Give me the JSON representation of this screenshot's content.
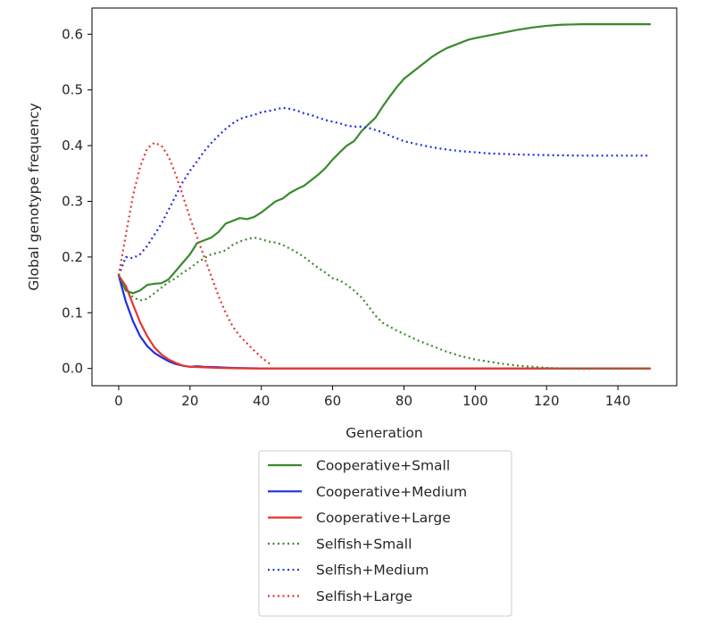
{
  "chart_data": {
    "type": "line",
    "title": "",
    "xlabel": "Generation",
    "ylabel": "Global genotype frequency",
    "xlim": [
      -7.5,
      156.5
    ],
    "ylim": [
      -0.031,
      0.647
    ],
    "xticks": [
      0,
      20,
      40,
      60,
      80,
      100,
      120,
      140
    ],
    "yticks": [
      0.0,
      0.1,
      0.2,
      0.3,
      0.4,
      0.5,
      0.6
    ],
    "ytick_labels": [
      "0.0",
      "0.1",
      "0.2",
      "0.3",
      "0.4",
      "0.5",
      "0.6"
    ],
    "grid": false,
    "legend_position": "below",
    "series": [
      {
        "name": "Cooperative+Small",
        "color": "#3a8a2e",
        "style": "solid",
        "points": [
          [
            0,
            0.167
          ],
          [
            2,
            0.14
          ],
          [
            4,
            0.135
          ],
          [
            6,
            0.14
          ],
          [
            8,
            0.15
          ],
          [
            10,
            0.152
          ],
          [
            12,
            0.153
          ],
          [
            14,
            0.16
          ],
          [
            16,
            0.175
          ],
          [
            18,
            0.19
          ],
          [
            20,
            0.205
          ],
          [
            22,
            0.225
          ],
          [
            24,
            0.23
          ],
          [
            26,
            0.235
          ],
          [
            28,
            0.245
          ],
          [
            30,
            0.26
          ],
          [
            32,
            0.265
          ],
          [
            34,
            0.27
          ],
          [
            36,
            0.268
          ],
          [
            38,
            0.272
          ],
          [
            40,
            0.28
          ],
          [
            42,
            0.29
          ],
          [
            44,
            0.3
          ],
          [
            46,
            0.305
          ],
          [
            48,
            0.315
          ],
          [
            50,
            0.322
          ],
          [
            52,
            0.328
          ],
          [
            54,
            0.338
          ],
          [
            56,
            0.348
          ],
          [
            58,
            0.36
          ],
          [
            60,
            0.375
          ],
          [
            62,
            0.388
          ],
          [
            64,
            0.4
          ],
          [
            66,
            0.408
          ],
          [
            68,
            0.425
          ],
          [
            70,
            0.438
          ],
          [
            72,
            0.45
          ],
          [
            74,
            0.47
          ],
          [
            76,
            0.488
          ],
          [
            78,
            0.505
          ],
          [
            80,
            0.52
          ],
          [
            82,
            0.53
          ],
          [
            84,
            0.54
          ],
          [
            86,
            0.55
          ],
          [
            88,
            0.56
          ],
          [
            90,
            0.568
          ],
          [
            92,
            0.575
          ],
          [
            94,
            0.58
          ],
          [
            96,
            0.585
          ],
          [
            98,
            0.59
          ],
          [
            100,
            0.593
          ],
          [
            104,
            0.598
          ],
          [
            108,
            0.603
          ],
          [
            112,
            0.608
          ],
          [
            116,
            0.612
          ],
          [
            120,
            0.615
          ],
          [
            124,
            0.617
          ],
          [
            130,
            0.618
          ],
          [
            140,
            0.618
          ],
          [
            149,
            0.618
          ]
        ]
      },
      {
        "name": "Cooperative+Medium",
        "color": "#1f2ee8",
        "style": "solid",
        "points": [
          [
            0,
            0.167
          ],
          [
            2,
            0.12
          ],
          [
            4,
            0.085
          ],
          [
            6,
            0.058
          ],
          [
            8,
            0.04
          ],
          [
            10,
            0.028
          ],
          [
            12,
            0.02
          ],
          [
            14,
            0.013
          ],
          [
            16,
            0.008
          ],
          [
            18,
            0.005
          ],
          [
            20,
            0.003
          ],
          [
            22,
            0.004
          ],
          [
            24,
            0.003
          ],
          [
            28,
            0.002
          ],
          [
            32,
            0.001
          ],
          [
            36,
            0.0005
          ],
          [
            40,
            0.0
          ],
          [
            60,
            0.0
          ],
          [
            80,
            0.0
          ],
          [
            100,
            0.0
          ],
          [
            120,
            0.0
          ],
          [
            149,
            0.0
          ]
        ]
      },
      {
        "name": "Cooperative+Large",
        "color": "#e8342c",
        "style": "solid",
        "points": [
          [
            0,
            0.167
          ],
          [
            2,
            0.148
          ],
          [
            4,
            0.115
          ],
          [
            6,
            0.083
          ],
          [
            8,
            0.058
          ],
          [
            10,
            0.038
          ],
          [
            12,
            0.025
          ],
          [
            14,
            0.016
          ],
          [
            16,
            0.01
          ],
          [
            18,
            0.005
          ],
          [
            20,
            0.003
          ],
          [
            24,
            0.002
          ],
          [
            28,
            0.001
          ],
          [
            32,
            0.0005
          ],
          [
            36,
            0.0
          ],
          [
            60,
            0.0
          ],
          [
            80,
            0.0
          ],
          [
            100,
            0.0
          ],
          [
            120,
            0.0
          ],
          [
            149,
            0.0
          ]
        ]
      },
      {
        "name": "Selfish+Small",
        "color": "#3a8a2e",
        "style": "dotted",
        "points": [
          [
            0,
            0.167
          ],
          [
            2,
            0.14
          ],
          [
            4,
            0.128
          ],
          [
            6,
            0.122
          ],
          [
            8,
            0.125
          ],
          [
            10,
            0.135
          ],
          [
            12,
            0.145
          ],
          [
            14,
            0.155
          ],
          [
            16,
            0.162
          ],
          [
            18,
            0.172
          ],
          [
            20,
            0.18
          ],
          [
            22,
            0.19
          ],
          [
            24,
            0.198
          ],
          [
            26,
            0.205
          ],
          [
            28,
            0.208
          ],
          [
            30,
            0.212
          ],
          [
            32,
            0.222
          ],
          [
            34,
            0.228
          ],
          [
            36,
            0.232
          ],
          [
            38,
            0.235
          ],
          [
            40,
            0.232
          ],
          [
            42,
            0.228
          ],
          [
            44,
            0.226
          ],
          [
            46,
            0.222
          ],
          [
            48,
            0.215
          ],
          [
            50,
            0.208
          ],
          [
            52,
            0.2
          ],
          [
            54,
            0.19
          ],
          [
            56,
            0.18
          ],
          [
            58,
            0.172
          ],
          [
            60,
            0.162
          ],
          [
            62,
            0.158
          ],
          [
            64,
            0.15
          ],
          [
            66,
            0.14
          ],
          [
            68,
            0.128
          ],
          [
            70,
            0.112
          ],
          [
            72,
            0.095
          ],
          [
            74,
            0.082
          ],
          [
            76,
            0.075
          ],
          [
            78,
            0.068
          ],
          [
            80,
            0.062
          ],
          [
            84,
            0.05
          ],
          [
            88,
            0.04
          ],
          [
            92,
            0.03
          ],
          [
            96,
            0.022
          ],
          [
            100,
            0.016
          ],
          [
            104,
            0.012
          ],
          [
            108,
            0.008
          ],
          [
            112,
            0.005
          ],
          [
            116,
            0.003
          ],
          [
            120,
            0.001
          ],
          [
            124,
            0.0
          ],
          [
            130,
            0.0
          ],
          [
            140,
            0.0
          ],
          [
            149,
            0.0
          ]
        ]
      },
      {
        "name": "Selfish+Medium",
        "color": "#1f2ee8",
        "style": "dotted",
        "points": [
          [
            0,
            0.167
          ],
          [
            2,
            0.2
          ],
          [
            4,
            0.198
          ],
          [
            6,
            0.205
          ],
          [
            8,
            0.22
          ],
          [
            10,
            0.24
          ],
          [
            12,
            0.26
          ],
          [
            14,
            0.285
          ],
          [
            16,
            0.31
          ],
          [
            18,
            0.335
          ],
          [
            20,
            0.355
          ],
          [
            22,
            0.372
          ],
          [
            24,
            0.39
          ],
          [
            26,
            0.405
          ],
          [
            28,
            0.418
          ],
          [
            30,
            0.43
          ],
          [
            32,
            0.44
          ],
          [
            34,
            0.448
          ],
          [
            36,
            0.452
          ],
          [
            38,
            0.455
          ],
          [
            40,
            0.46
          ],
          [
            42,
            0.462
          ],
          [
            44,
            0.465
          ],
          [
            46,
            0.468
          ],
          [
            48,
            0.466
          ],
          [
            50,
            0.463
          ],
          [
            52,
            0.458
          ],
          [
            54,
            0.455
          ],
          [
            56,
            0.45
          ],
          [
            58,
            0.446
          ],
          [
            60,
            0.443
          ],
          [
            62,
            0.44
          ],
          [
            64,
            0.436
          ],
          [
            66,
            0.434
          ],
          [
            68,
            0.434
          ],
          [
            70,
            0.432
          ],
          [
            72,
            0.428
          ],
          [
            74,
            0.424
          ],
          [
            76,
            0.418
          ],
          [
            78,
            0.413
          ],
          [
            80,
            0.408
          ],
          [
            84,
            0.402
          ],
          [
            88,
            0.397
          ],
          [
            92,
            0.393
          ],
          [
            96,
            0.39
          ],
          [
            100,
            0.388
          ],
          [
            104,
            0.386
          ],
          [
            108,
            0.385
          ],
          [
            112,
            0.384
          ],
          [
            120,
            0.383
          ],
          [
            130,
            0.382
          ],
          [
            140,
            0.382
          ],
          [
            149,
            0.382
          ]
        ]
      },
      {
        "name": "Selfish+Large",
        "color": "#e8342c",
        "style": "dotted",
        "points": [
          [
            0,
            0.167
          ],
          [
            2,
            0.24
          ],
          [
            4,
            0.31
          ],
          [
            6,
            0.362
          ],
          [
            8,
            0.395
          ],
          [
            10,
            0.405
          ],
          [
            12,
            0.4
          ],
          [
            14,
            0.38
          ],
          [
            16,
            0.348
          ],
          [
            18,
            0.31
          ],
          [
            20,
            0.27
          ],
          [
            22,
            0.235
          ],
          [
            24,
            0.2
          ],
          [
            26,
            0.165
          ],
          [
            28,
            0.13
          ],
          [
            30,
            0.1
          ],
          [
            32,
            0.075
          ],
          [
            34,
            0.058
          ],
          [
            36,
            0.045
          ],
          [
            38,
            0.032
          ],
          [
            40,
            0.02
          ],
          [
            42,
            0.01
          ],
          [
            43,
            0.005
          ]
        ]
      }
    ]
  }
}
